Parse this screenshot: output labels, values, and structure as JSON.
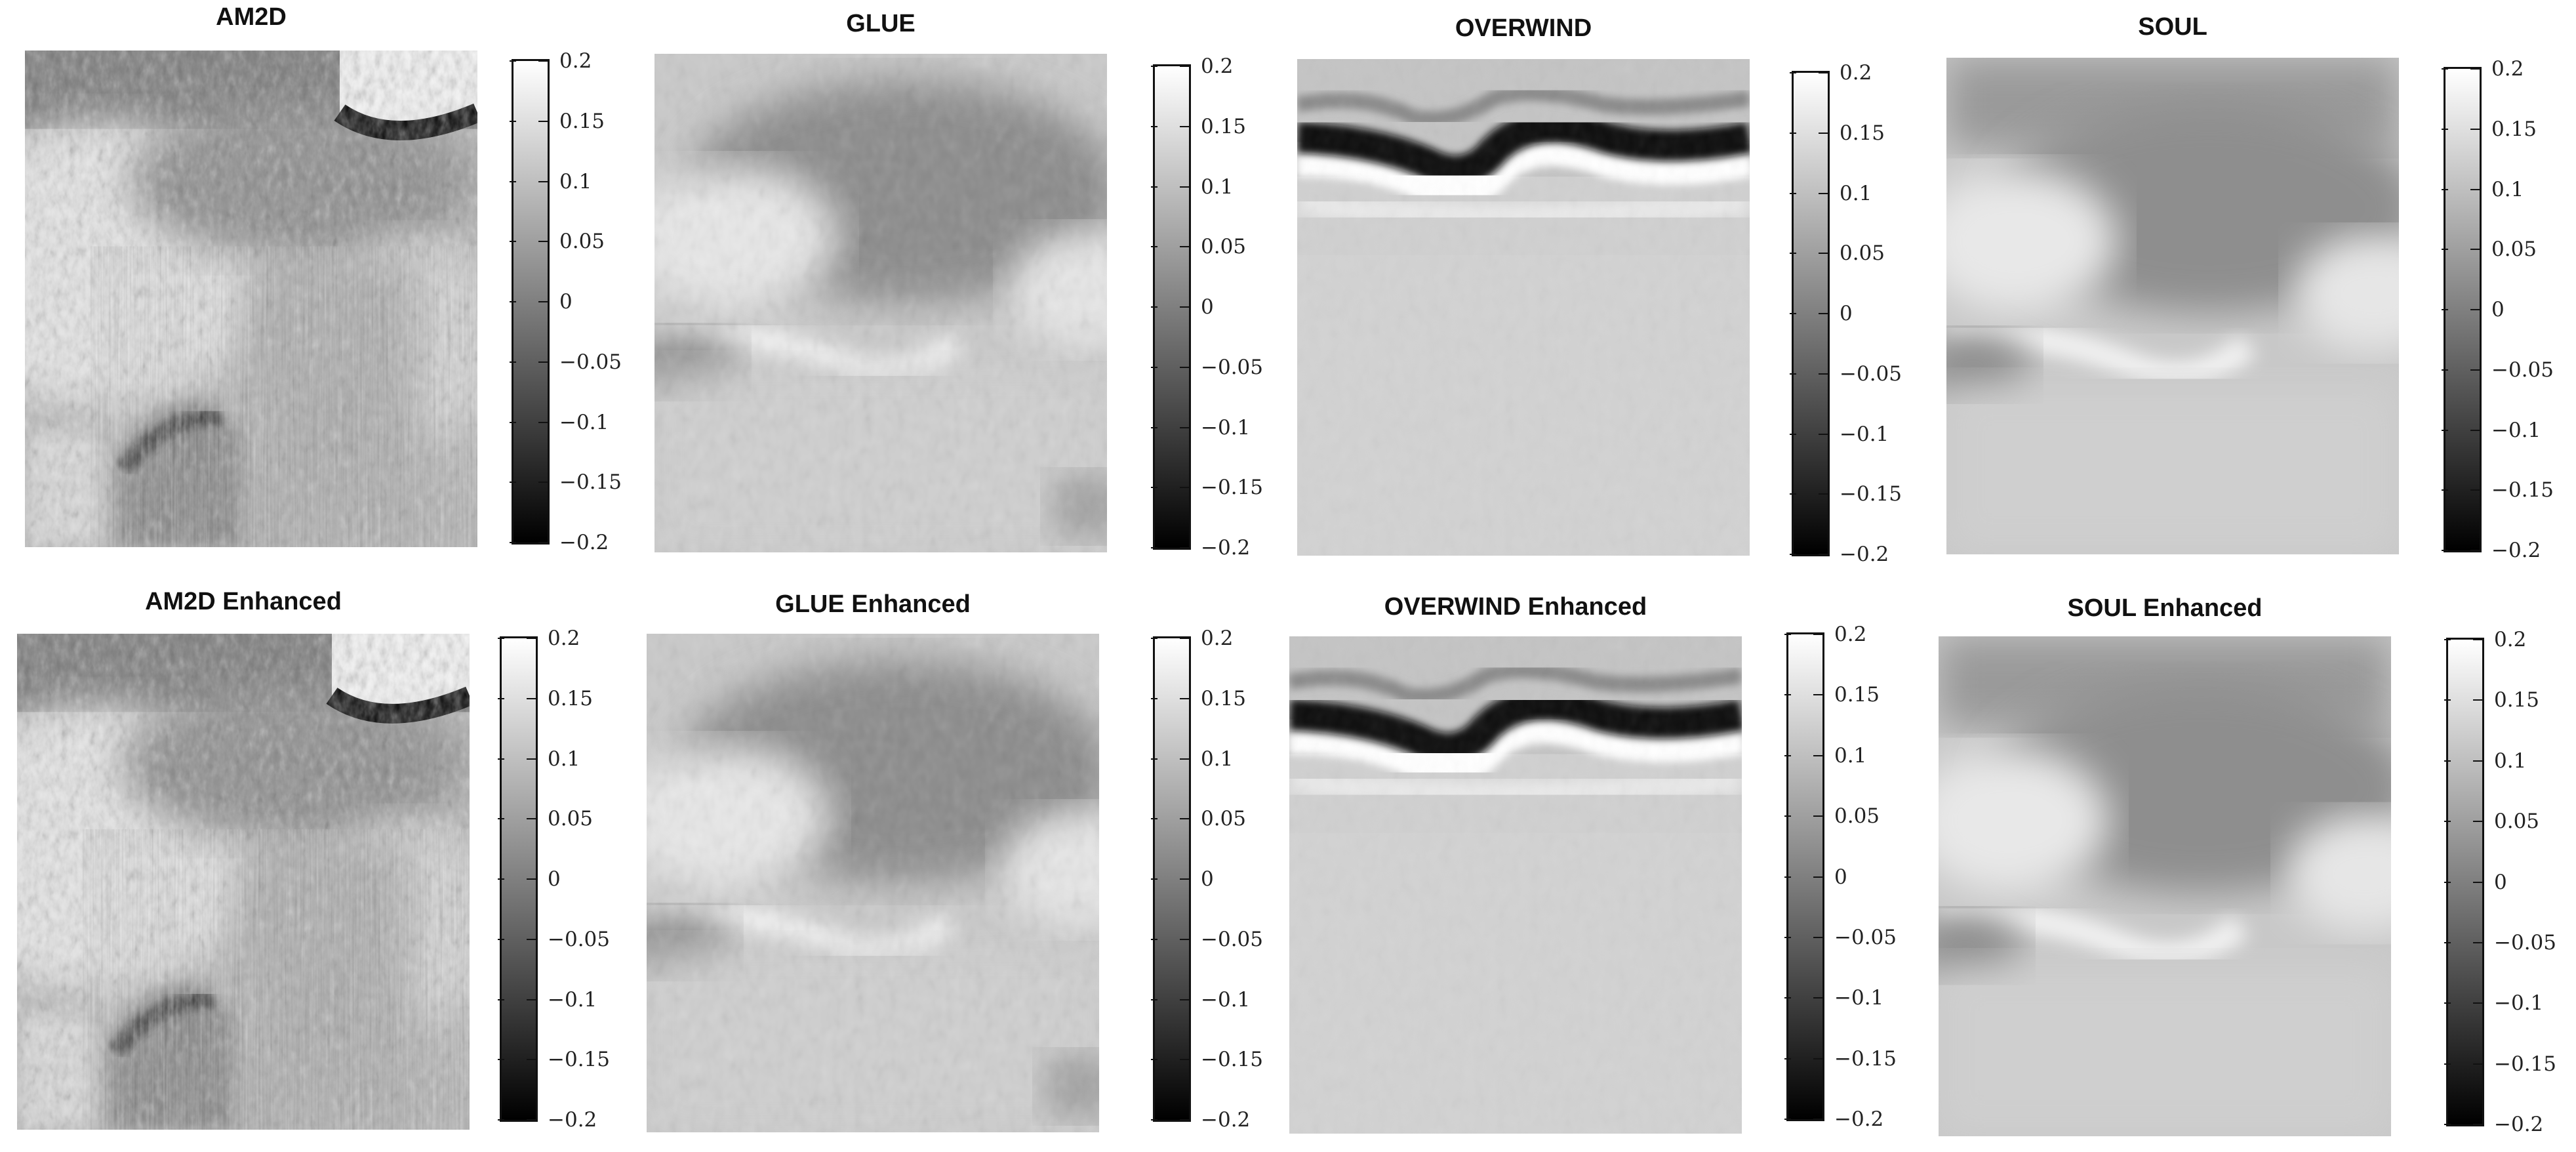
{
  "colorbar_ticks": [
    "0.2",
    "0.15",
    "0.1",
    "0.05",
    "0",
    "−0.05",
    "−0.1",
    "−0.15",
    "−0.2"
  ],
  "panels": [
    {
      "title": "AM2D",
      "style": "am2d"
    },
    {
      "title": "GLUE",
      "style": "glue"
    },
    {
      "title": "OVERWIND",
      "style": "overwind"
    },
    {
      "title": "SOUL",
      "style": "soul"
    },
    {
      "title": "AM2D Enhanced",
      "style": "am2d"
    },
    {
      "title": "GLUE Enhanced",
      "style": "glue"
    },
    {
      "title": "OVERWIND Enhanced",
      "style": "overwind"
    },
    {
      "title": "SOUL Enhanced",
      "style": "soul"
    }
  ]
}
